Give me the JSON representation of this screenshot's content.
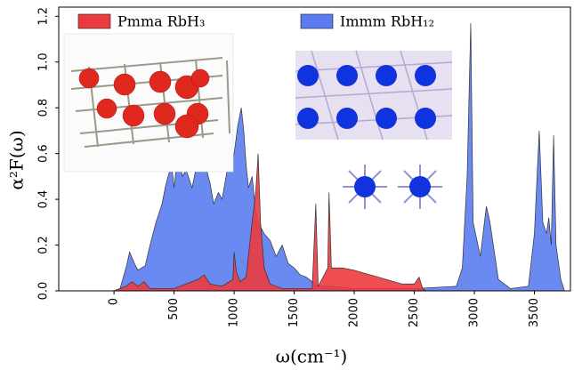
{
  "chart_data": {
    "type": "area",
    "x_label": "ω(cm⁻¹)",
    "y_label": "α²F(ω)",
    "xlim": [
      -460,
      3800
    ],
    "ylim": [
      0,
      1.24
    ],
    "xticks": [
      0,
      500,
      1000,
      1500,
      2000,
      2500,
      3000,
      3500
    ],
    "yticks": [
      {
        "value": 0,
        "label": "0.0"
      },
      0.2,
      0.4,
      0.6,
      0.8,
      {
        "value": 1,
        "label": "1.0"
      },
      1.2
    ],
    "legend": "top",
    "series": [
      {
        "name": "Immm RbH₁₂",
        "color": "#5a7cf0",
        "x": [
          0,
          50,
          100,
          130,
          170,
          200,
          260,
          300,
          350,
          400,
          430,
          450,
          480,
          500,
          530,
          570,
          600,
          650,
          700,
          730,
          760,
          800,
          830,
          870,
          900,
          950,
          1000,
          1030,
          1060,
          1080,
          1100,
          1120,
          1150,
          1180,
          1200,
          1250,
          1300,
          1350,
          1400,
          1450,
          1500,
          1550,
          1600,
          1650,
          1700,
          1800,
          2000,
          2500,
          2850,
          2900,
          2940,
          2970,
          2990,
          3050,
          3100,
          3130,
          3200,
          3300,
          3450,
          3500,
          3540,
          3570,
          3600,
          3620,
          3640,
          3660,
          3680,
          3720,
          3750
        ],
        "values": [
          0,
          0.01,
          0.1,
          0.17,
          0.12,
          0.09,
          0.11,
          0.2,
          0.3,
          0.38,
          0.46,
          0.5,
          0.55,
          0.45,
          0.6,
          0.5,
          0.53,
          0.45,
          0.58,
          0.52,
          0.55,
          0.47,
          0.38,
          0.43,
          0.4,
          0.55,
          0.6,
          0.72,
          0.8,
          0.7,
          0.55,
          0.45,
          0.5,
          0.35,
          0.3,
          0.25,
          0.22,
          0.15,
          0.2,
          0.12,
          0.1,
          0.07,
          0.06,
          0.04,
          0.02,
          0.02,
          0.01,
          0.01,
          0.02,
          0.1,
          0.5,
          1.17,
          0.3,
          0.15,
          0.37,
          0.3,
          0.05,
          0.01,
          0.02,
          0.25,
          0.7,
          0.3,
          0.25,
          0.32,
          0.2,
          0.68,
          0.2,
          0.05,
          0
        ]
      },
      {
        "name": "Pmma RbH₃",
        "color": "#ec3b3f",
        "x": [
          0,
          100,
          150,
          200,
          250,
          300,
          500,
          700,
          750,
          800,
          900,
          990,
          1000,
          1020,
          1050,
          1100,
          1150,
          1180,
          1200,
          1220,
          1250,
          1300,
          1400,
          1650,
          1680,
          1700,
          1780,
          1790,
          1810,
          1900,
          2000,
          2200,
          2400,
          2500,
          2540,
          2570,
          2600
        ],
        "values": [
          0,
          0.02,
          0.04,
          0.02,
          0.04,
          0.01,
          0.01,
          0.05,
          0.07,
          0.03,
          0.02,
          0.05,
          0.17,
          0.08,
          0.04,
          0.06,
          0.3,
          0.43,
          0.6,
          0.3,
          0.1,
          0.03,
          0.01,
          0.01,
          0.38,
          0.02,
          0.1,
          0.43,
          0.1,
          0.1,
          0.09,
          0.06,
          0.03,
          0.03,
          0.06,
          0.01,
          0
        ]
      }
    ]
  }
}
